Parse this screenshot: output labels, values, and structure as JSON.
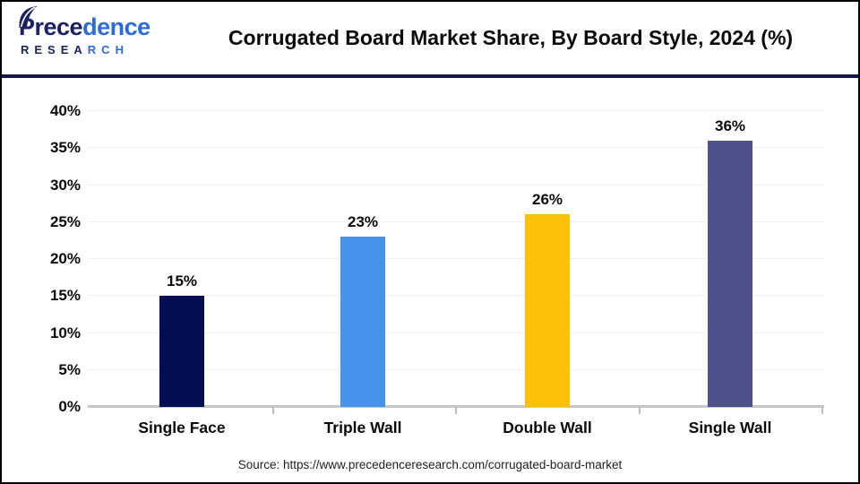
{
  "header": {
    "logo": {
      "word_dark": "Prece",
      "word_blue": "dence",
      "sub_dark": "RESEA",
      "sub_blue": "RCH"
    },
    "title": "Corrugated Board Market Share, By Board Style, 2024 (%)"
  },
  "footer": {
    "source": "Source: https://www.precedenceresearch.com/corrugated-board-market"
  },
  "palette": {
    "divider_navy": "#161a4a",
    "logo_dark_blue": "#1b2161",
    "logo_bright_blue": "#2d6cd6",
    "gridline": "#efefef",
    "axis_line": "#c6c6c6"
  },
  "chart_data": {
    "type": "bar",
    "title": "Corrugated Board Market Share, By Board Style, 2024 (%)",
    "categories": [
      "Single Face",
      "Triple Wall",
      "Double Wall",
      "Single Wall"
    ],
    "values": [
      15,
      23,
      26,
      36
    ],
    "value_labels": [
      "15%",
      "23%",
      "26%",
      "36%"
    ],
    "bar_colors": [
      "#040c52",
      "#4793ec",
      "#fdc008",
      "#4d528b"
    ],
    "xlabel": "",
    "ylabel": "",
    "ylim": [
      0,
      40
    ],
    "ytick_step": 5,
    "ytick_labels": [
      "0%",
      "5%",
      "10%",
      "15%",
      "20%",
      "25%",
      "30%",
      "35%",
      "40%"
    ],
    "grid": true,
    "legend": "none"
  }
}
